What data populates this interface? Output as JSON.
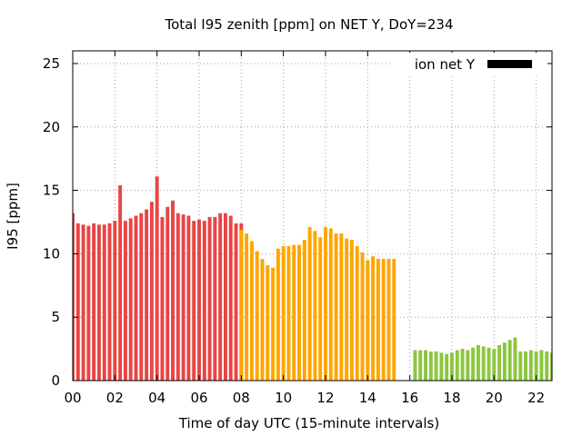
{
  "chart_data": {
    "type": "bar",
    "title": "Total I95 zenith [ppm] on NET Y, DoY=234",
    "xlabel": "Time of day UTC (15-minute intervals)",
    "ylabel": "I95 [ppm]",
    "xlim": [
      0,
      22.75
    ],
    "ylim": [
      0,
      26
    ],
    "x_ticks": [
      "00",
      "02",
      "04",
      "06",
      "08",
      "10",
      "12",
      "14",
      "16",
      "18",
      "20",
      "22"
    ],
    "y_ticks": [
      "0",
      "5",
      "10",
      "15",
      "20",
      "25"
    ],
    "grid": true,
    "legend": {
      "label": "ion net Y",
      "color": "#000000",
      "placement": "top-right"
    },
    "colors": {
      "red": "#e84545",
      "orange": "#ffa500",
      "green": "#8cc63f"
    },
    "bar_width_hours": 0.17,
    "series": [
      {
        "color": "red",
        "x": [
          0.0,
          0.25,
          0.5,
          0.75,
          1.0,
          1.25,
          1.5,
          1.75,
          2.0,
          2.25,
          2.5,
          2.75,
          3.0,
          3.25,
          3.5,
          3.75,
          4.0,
          4.25,
          4.5,
          4.75,
          5.0,
          5.25,
          5.5,
          5.75,
          6.0,
          6.25,
          6.5,
          6.75,
          7.0,
          7.25,
          7.5,
          7.75,
          8.0
        ],
        "values": [
          13.2,
          12.4,
          12.3,
          12.2,
          12.4,
          12.3,
          12.3,
          12.4,
          12.6,
          15.4,
          12.6,
          12.8,
          13.0,
          13.2,
          13.5,
          14.1,
          16.1,
          12.9,
          13.7,
          14.2,
          13.2,
          13.1,
          13.0,
          12.6,
          12.7,
          12.6,
          12.9,
          12.9,
          13.2,
          13.2,
          13.0,
          12.4,
          12.4
        ]
      },
      {
        "color": "orange",
        "x": [
          8.0,
          8.25,
          8.5,
          8.75,
          9.0,
          9.25,
          9.5,
          9.75,
          10.0,
          10.25,
          10.5,
          10.75,
          11.0,
          11.25,
          11.5,
          11.75,
          12.0,
          12.25,
          12.5,
          12.75,
          13.0,
          13.25,
          13.5,
          13.75,
          14.0,
          14.25,
          14.5,
          14.75,
          15.0,
          15.25
        ],
        "values": [
          11.9,
          11.6,
          11.0,
          10.2,
          9.6,
          9.1,
          8.9,
          10.4,
          10.6,
          10.6,
          10.7,
          10.7,
          11.1,
          12.1,
          11.8,
          11.3,
          12.1,
          12.0,
          11.6,
          11.6,
          11.2,
          11.1,
          10.6,
          10.1,
          9.5,
          9.8,
          9.6,
          9.6,
          9.6,
          9.6
        ]
      },
      {
        "color": "green",
        "x": [
          16.25,
          16.5,
          16.75,
          17.0,
          17.25,
          17.5,
          17.75,
          18.0,
          18.25,
          18.5,
          18.75,
          19.0,
          19.25,
          19.5,
          19.75,
          20.0,
          20.25,
          20.5,
          20.75,
          21.0,
          21.25,
          21.5,
          21.75,
          22.0,
          22.25,
          22.5,
          22.75
        ],
        "values": [
          2.4,
          2.4,
          2.4,
          2.3,
          2.3,
          2.2,
          2.1,
          2.2,
          2.4,
          2.5,
          2.4,
          2.6,
          2.8,
          2.7,
          2.6,
          2.5,
          2.8,
          3.0,
          3.2,
          3.4,
          2.3,
          2.3,
          2.4,
          2.3,
          2.4,
          2.3,
          2.2
        ]
      }
    ]
  }
}
